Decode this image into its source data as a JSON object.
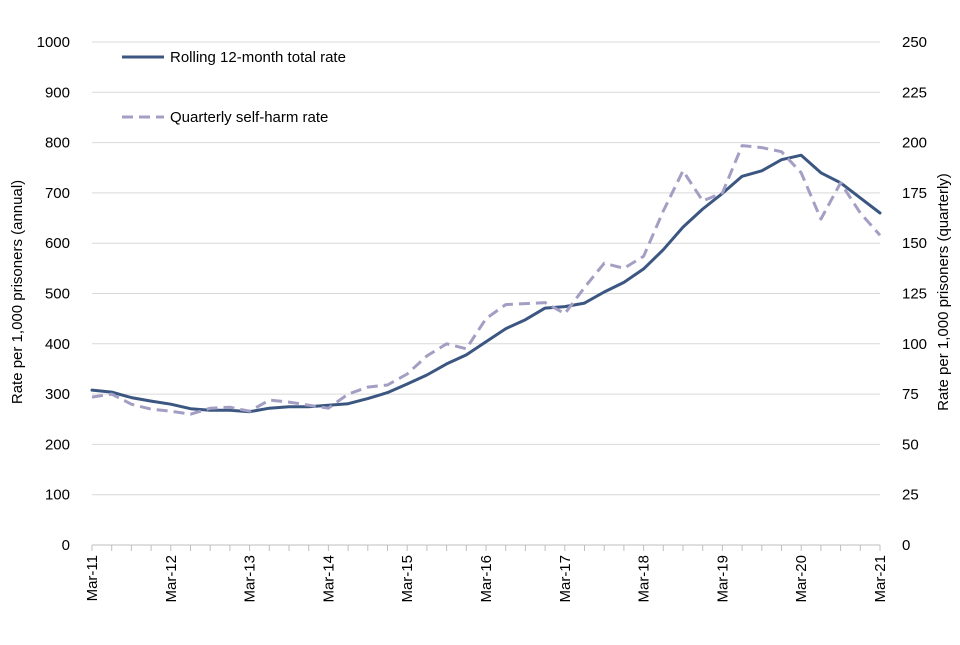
{
  "chart_data": {
    "type": "line",
    "x_labels": [
      "Mar-11",
      "Mar-12",
      "Mar-13",
      "Mar-14",
      "Mar-15",
      "Mar-16",
      "Mar-17",
      "Mar-18",
      "Mar-19",
      "Mar-20",
      "Mar-21"
    ],
    "y_left": {
      "label": "Rate per 1,000 prisoners (annual)",
      "lim": [
        0,
        1000
      ],
      "ticks": [
        0,
        100,
        200,
        300,
        400,
        500,
        600,
        700,
        800,
        900,
        1000
      ]
    },
    "y_right": {
      "label": "Rate per 1,000 prisoners (quarterly)",
      "lim": [
        0,
        250
      ],
      "ticks": [
        0,
        25,
        50,
        75,
        100,
        125,
        150,
        175,
        200,
        225,
        250
      ]
    },
    "grid": true,
    "legend_position": "top-left",
    "series": [
      {
        "name": "Rolling 12-month total rate",
        "axis": "left",
        "style": "solid",
        "color": "#3b5680",
        "values": [
          308,
          304,
          293,
          286,
          280,
          271,
          268,
          268,
          265,
          272,
          275,
          275,
          278,
          281,
          291,
          303,
          320,
          338,
          360,
          378,
          404,
          430,
          448,
          471,
          474,
          481,
          503,
          522,
          549,
          587,
          632,
          668,
          699,
          733,
          744,
          766,
          775,
          740,
          720,
          690,
          660
        ]
      },
      {
        "name": "Quarterly self-harm rate",
        "axis": "right",
        "style": "dashed",
        "color": "#a39fc4",
        "values": [
          73.5,
          75,
          70,
          67.5,
          66.5,
          65,
          68,
          68.5,
          66.5,
          72,
          71,
          69.5,
          68,
          75,
          78.5,
          79.5,
          85,
          94,
          100,
          97.5,
          112.5,
          119.5,
          120,
          120.5,
          115,
          128,
          140,
          137.5,
          143.5,
          166,
          186,
          171,
          175,
          198.5,
          197.5,
          195.5,
          185,
          162,
          180,
          165,
          154
        ]
      }
    ]
  }
}
